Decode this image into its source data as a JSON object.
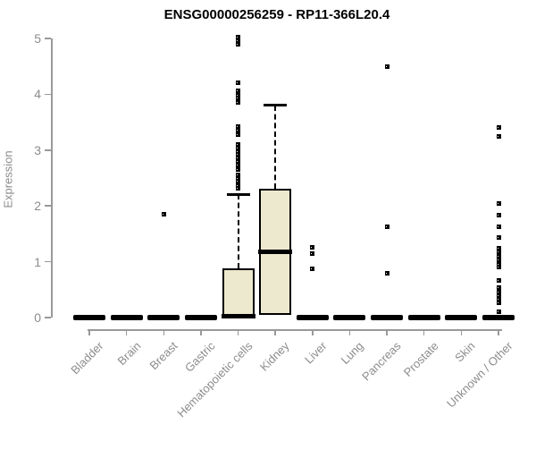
{
  "title": "ENSG00000256259 - RP11-366L20.4",
  "chart_data": {
    "type": "boxplot",
    "title": "ENSG00000256259 - RP11-366L20.4",
    "ylabel": "Expression",
    "xlabel": "",
    "ylim": [
      0,
      5
    ],
    "yticks": [
      0,
      1,
      2,
      3,
      4,
      5
    ],
    "grid": false,
    "legend": "none",
    "categories": [
      "Bladder",
      "Brain",
      "Breast",
      "Gastric",
      "Hematopoietic cells",
      "Kidney",
      "Liver",
      "Lung",
      "Pancreas",
      "Prostate",
      "Skin",
      "Unknown / Other"
    ],
    "boxes": [
      {
        "category": "Bladder",
        "q1": 0,
        "median": 0,
        "q3": 0,
        "whisker_low": 0,
        "whisker_high": 0,
        "outliers": []
      },
      {
        "category": "Brain",
        "q1": 0,
        "median": 0,
        "q3": 0,
        "whisker_low": 0,
        "whisker_high": 0,
        "outliers": []
      },
      {
        "category": "Breast",
        "q1": 0,
        "median": 0,
        "q3": 0,
        "whisker_low": 0,
        "whisker_high": 0,
        "outliers": [
          1.85
        ]
      },
      {
        "category": "Gastric",
        "q1": 0,
        "median": 0,
        "q3": 0,
        "whisker_low": 0,
        "whisker_high": 0,
        "outliers": []
      },
      {
        "category": "Hematopoietic cells",
        "q1": 0,
        "median": 0.02,
        "q3": 0.88,
        "whisker_low": 0,
        "whisker_high": 2.21,
        "outliers": [
          5.02,
          4.96,
          4.89,
          4.21,
          4.06,
          3.99,
          3.93,
          3.86,
          3.42,
          3.35,
          3.28,
          3.1,
          3.04,
          2.98,
          2.92,
          2.86,
          2.8,
          2.73,
          2.66,
          2.56,
          2.5,
          2.44,
          2.37,
          2.31
        ]
      },
      {
        "category": "Kidney",
        "q1": 0.04,
        "median": 1.17,
        "q3": 2.31,
        "whisker_low": 0.04,
        "whisker_high": 3.8,
        "outliers": []
      },
      {
        "category": "Liver",
        "q1": 0,
        "median": 0,
        "q3": 0,
        "whisker_low": 0,
        "whisker_high": 0,
        "outliers": [
          1.26,
          1.15,
          0.88
        ]
      },
      {
        "category": "Lung",
        "q1": 0,
        "median": 0,
        "q3": 0,
        "whisker_low": 0,
        "whisker_high": 0,
        "outliers": []
      },
      {
        "category": "Pancreas",
        "q1": 0,
        "median": 0,
        "q3": 0,
        "whisker_low": 0,
        "whisker_high": 0,
        "outliers": [
          4.49,
          1.63,
          0.79
        ]
      },
      {
        "category": "Prostate",
        "q1": 0,
        "median": 0,
        "q3": 0,
        "whisker_low": 0,
        "whisker_high": 0,
        "outliers": []
      },
      {
        "category": "Skin",
        "q1": 0,
        "median": 0,
        "q3": 0,
        "whisker_low": 0,
        "whisker_high": 0,
        "outliers": []
      },
      {
        "category": "Unknown / Other",
        "q1": 0,
        "median": 0,
        "q3": 0,
        "whisker_low": 0,
        "whisker_high": 0,
        "outliers": [
          3.4,
          3.24,
          2.05,
          1.84,
          1.63,
          1.43,
          1.25,
          1.17,
          1.1,
          1.03,
          0.96,
          0.9,
          0.67,
          0.53,
          0.46,
          0.4,
          0.33,
          0.27,
          0.11
        ]
      }
    ],
    "colors": {
      "background": "#ffffff",
      "box_fill": "#ede9ce",
      "box_border": "#000000",
      "median": "#000000",
      "whisker": "#000000",
      "outlier": "#000000",
      "axis": "#999999",
      "tick_label": "#8c8c8c",
      "title": "#000000"
    }
  }
}
